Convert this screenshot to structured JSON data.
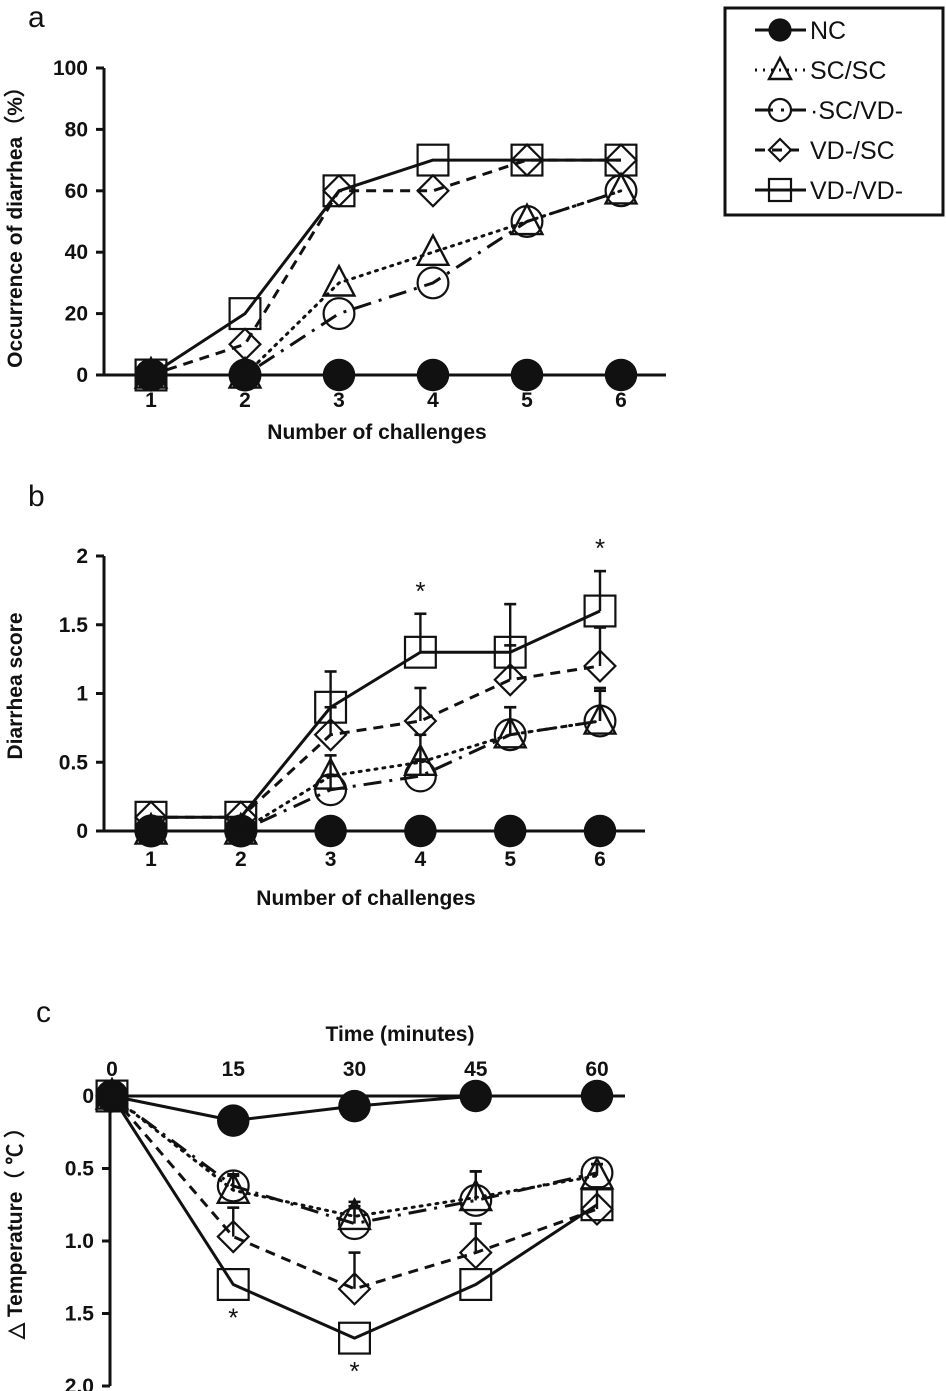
{
  "legend": {
    "placement": "top-right",
    "entries": [
      {
        "key": "NC",
        "label": "NC",
        "marker": "filled-circle",
        "dash": "solid"
      },
      {
        "key": "SCSC",
        "label": "SC/SC",
        "marker": "open-triangle",
        "dash": "dotted"
      },
      {
        "key": "SCVD",
        "label": "·SC/VD-",
        "marker": "open-circle",
        "dash": "dashdot"
      },
      {
        "key": "VDSC",
        "label": "VD-/SC",
        "marker": "open-diamond",
        "dash": "dashed"
      },
      {
        "key": "VDVD",
        "label": "VD-/VD-",
        "marker": "open-square",
        "dash": "solid"
      }
    ]
  },
  "colors": {
    "ink": "#111111",
    "background": "#ffffff"
  },
  "chart_data": [
    {
      "panel": "a",
      "type": "line",
      "title": "",
      "xlabel": "Number of challenges",
      "ylabel": "Occurrence of diarrhea（%）",
      "x": [
        1,
        2,
        3,
        4,
        5,
        6
      ],
      "xticks": [
        "1",
        "2",
        "3",
        "4",
        "5",
        "6"
      ],
      "ylim": [
        0,
        100
      ],
      "yticks": [
        "0",
        "20",
        "40",
        "60",
        "80",
        "100"
      ],
      "ytick_values": [
        0,
        20,
        40,
        60,
        80,
        100
      ],
      "grid": false,
      "series": [
        {
          "name": "NC",
          "values": [
            0,
            0,
            0,
            0,
            0,
            0
          ]
        },
        {
          "name": "SC/SC",
          "values": [
            0,
            0,
            30,
            40,
            50,
            60
          ]
        },
        {
          "name": "SC/VD-",
          "values": [
            0,
            0,
            20,
            30,
            50,
            60
          ]
        },
        {
          "name": "VD-/SC",
          "values": [
            0,
            10,
            60,
            60,
            70,
            70
          ]
        },
        {
          "name": "VD-/VD-",
          "values": [
            0,
            20,
            60,
            70,
            70,
            70
          ]
        }
      ],
      "annotations": []
    },
    {
      "panel": "b",
      "type": "line",
      "title": "",
      "xlabel": "Number of challenges",
      "ylabel": "Diarrhea score",
      "x": [
        1,
        2,
        3,
        4,
        5,
        6
      ],
      "xticks": [
        "1",
        "2",
        "3",
        "4",
        "5",
        "6"
      ],
      "ylim": [
        0,
        2
      ],
      "yticks": [
        "0",
        "0.5",
        "1",
        "1.5",
        "2"
      ],
      "ytick_values": [
        0,
        0.5,
        1,
        1.5,
        2
      ],
      "grid": false,
      "series": [
        {
          "name": "NC",
          "values": [
            0,
            0,
            0,
            0,
            0,
            0
          ],
          "errors": [
            0,
            0,
            0,
            0,
            0,
            0
          ]
        },
        {
          "name": "SC/SC",
          "values": [
            0,
            0,
            0.4,
            0.5,
            0.7,
            0.8
          ],
          "errors": [
            0,
            0,
            0.15,
            0.2,
            0.2,
            0.24
          ]
        },
        {
          "name": "SC/VD-",
          "values": [
            0,
            0,
            0.3,
            0.4,
            0.7,
            0.8
          ],
          "errors": [
            0,
            0,
            0.1,
            0.12,
            0.2,
            0.22
          ]
        },
        {
          "name": "VD-/SC",
          "values": [
            0.1,
            0.1,
            0.7,
            0.8,
            1.1,
            1.2
          ],
          "errors": [
            0,
            0,
            0.2,
            0.24,
            0.25,
            0.28
          ]
        },
        {
          "name": "VD-/VD-",
          "values": [
            0.1,
            0.1,
            0.9,
            1.3,
            1.3,
            1.6
          ],
          "errors": [
            0,
            0,
            0.26,
            0.28,
            0.35,
            0.29
          ]
        }
      ],
      "annotations": [
        {
          "text": "*",
          "x": 4,
          "series": "VD-/VD-"
        },
        {
          "text": "*",
          "x": 6,
          "series": "VD-/VD-"
        }
      ]
    },
    {
      "panel": "c",
      "type": "line",
      "title": "",
      "xlabel": "Time (minutes)",
      "ylabel": "△ Temperature（ ℃ ）",
      "x": [
        0,
        15,
        30,
        45,
        60
      ],
      "xticks": [
        "0",
        "15",
        "30",
        "45",
        "60"
      ],
      "ylim": [
        0,
        2.0
      ],
      "y_inverted": true,
      "yticks": [
        "0",
        "0.5",
        "1.0",
        "1.5",
        "2.0"
      ],
      "ytick_values": [
        0,
        0.5,
        1.0,
        1.5,
        2.0
      ],
      "grid": false,
      "series": [
        {
          "name": "NC",
          "values": [
            0,
            0.17,
            0.07,
            0,
            0
          ],
          "errors": [
            0,
            0,
            0,
            0,
            0
          ]
        },
        {
          "name": "SC/SC",
          "values": [
            0,
            0.65,
            0.83,
            0.7,
            0.55
          ],
          "errors": [
            0,
            0.1,
            0.1,
            0.18,
            0.08
          ]
        },
        {
          "name": "SC/VD-",
          "values": [
            0,
            0.62,
            0.88,
            0.72,
            0.53
          ],
          "errors": [
            0,
            0.08,
            0.12,
            0.2,
            0.06
          ]
        },
        {
          "name": "VD-/SC",
          "values": [
            0,
            0.97,
            1.33,
            1.08,
            0.78
          ],
          "errors": [
            0,
            0.2,
            0.25,
            0.2,
            0.15
          ]
        },
        {
          "name": "VD-/VD-",
          "values": [
            0,
            1.3,
            1.67,
            1.3,
            0.75
          ],
          "errors": [
            0,
            0,
            0,
            0,
            0
          ]
        }
      ],
      "annotations": [
        {
          "text": "*",
          "x": 15,
          "series": "VD-/VD-"
        },
        {
          "text": "*",
          "x": 30,
          "series": "VD-/VD-"
        }
      ]
    }
  ]
}
